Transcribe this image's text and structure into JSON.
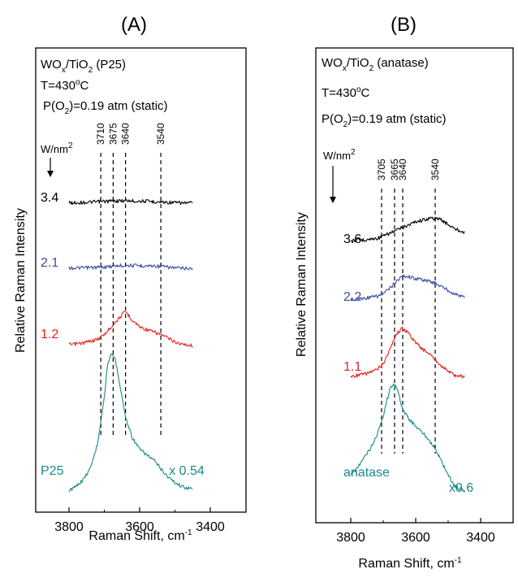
{
  "chart_data": [
    {
      "type": "line",
      "panel_label": "(A)",
      "annotation": {
        "catalyst": "WOx/TiO2 (P25)",
        "temperature": "T=430oC",
        "pressure": "P(O2)=0.19 atm (static)",
        "units_header": "W/nm2"
      },
      "xlabel": "Raman Shift, cm-1",
      "ylabel": "Relative Raman Intensity",
      "x_reversed": true,
      "xlim": [
        3900,
        3300
      ],
      "xticks": [
        3800,
        3600,
        3400
      ],
      "peak_markers": [
        3710,
        3675,
        3640,
        3540
      ],
      "series": [
        {
          "name": "3.4",
          "color": "#000000",
          "label_color": "#000000",
          "x": [
            3800,
            3760,
            3720,
            3700,
            3680,
            3660,
            3640,
            3620,
            3600,
            3580,
            3560,
            3540,
            3520,
            3500,
            3480,
            3450
          ],
          "y": [
            0.02,
            0.04,
            0.08,
            0.1,
            0.12,
            0.13,
            0.14,
            0.13,
            0.12,
            0.11,
            0.09,
            0.07,
            0.05,
            0.03,
            0.02,
            0.02
          ]
        },
        {
          "name": "2.1",
          "color": "#3b4fa3",
          "label_color": "#3b4fa3",
          "x": [
            3800,
            3760,
            3720,
            3700,
            3680,
            3660,
            3640,
            3620,
            3600,
            3580,
            3560,
            3540,
            3520,
            3500,
            3480,
            3450
          ],
          "y": [
            0.01,
            0.02,
            0.04,
            0.06,
            0.09,
            0.12,
            0.14,
            0.13,
            0.12,
            0.12,
            0.11,
            0.09,
            0.05,
            0.02,
            0.0,
            0.0
          ]
        },
        {
          "name": "1.2",
          "color": "#e8231d",
          "label_color": "#e8231d",
          "x": [
            3800,
            3760,
            3720,
            3700,
            3680,
            3660,
            3640,
            3620,
            3600,
            3580,
            3560,
            3540,
            3520,
            3500,
            3480,
            3450
          ],
          "y": [
            0.05,
            0.08,
            0.14,
            0.22,
            0.35,
            0.48,
            0.6,
            0.45,
            0.35,
            0.3,
            0.26,
            0.22,
            0.16,
            0.1,
            0.06,
            0.04
          ]
        },
        {
          "name": "P25",
          "color": "#1a8a8a",
          "label_color": "#1a8a8a",
          "scale_label": "x 0.54",
          "x": [
            3800,
            3780,
            3760,
            3740,
            3720,
            3700,
            3690,
            3680,
            3670,
            3660,
            3650,
            3640,
            3620,
            3600,
            3580,
            3560,
            3540,
            3520,
            3500,
            3480,
            3450
          ],
          "y": [
            0.02,
            0.05,
            0.1,
            0.18,
            0.35,
            0.7,
            0.95,
            1.0,
            0.98,
            0.85,
            0.7,
            0.55,
            0.4,
            0.32,
            0.28,
            0.24,
            0.18,
            0.12,
            0.08,
            0.05,
            0.03
          ]
        }
      ]
    },
    {
      "type": "line",
      "panel_label": "(B)",
      "annotation": {
        "catalyst": "WOx/TiO2 (anatase)",
        "temperature": "T=430oC",
        "pressure": "P(O2)=0.19 atm (static)",
        "units_header": "W/nm2"
      },
      "xlabel": "Raman Shift, cm-1",
      "ylabel": "Relative Raman Intensity",
      "x_reversed": true,
      "xlim": [
        3900,
        3300
      ],
      "xticks": [
        3800,
        3600,
        3400
      ],
      "peak_markers": [
        3705,
        3665,
        3640,
        3540
      ],
      "series": [
        {
          "name": "3.6",
          "color": "#000000",
          "label_color": "#000000",
          "x": [
            3800,
            3760,
            3720,
            3700,
            3680,
            3660,
            3640,
            3620,
            3600,
            3580,
            3560,
            3540,
            3520,
            3500,
            3480,
            3450
          ],
          "y": [
            0.0,
            0.01,
            0.03,
            0.06,
            0.1,
            0.14,
            0.18,
            0.22,
            0.26,
            0.28,
            0.3,
            0.31,
            0.28,
            0.22,
            0.16,
            0.12
          ]
        },
        {
          "name": "2.2",
          "color": "#3b4fa3",
          "label_color": "#3b4fa3",
          "x": [
            3800,
            3760,
            3720,
            3700,
            3680,
            3660,
            3640,
            3620,
            3600,
            3580,
            3560,
            3540,
            3520,
            3500,
            3480,
            3450
          ],
          "y": [
            0.0,
            0.01,
            0.03,
            0.06,
            0.12,
            0.2,
            0.26,
            0.25,
            0.23,
            0.22,
            0.2,
            0.18,
            0.14,
            0.1,
            0.06,
            0.02
          ]
        },
        {
          "name": "1.1",
          "color": "#e8231d",
          "label_color": "#e8231d",
          "x": [
            3800,
            3760,
            3720,
            3700,
            3680,
            3660,
            3640,
            3620,
            3600,
            3580,
            3560,
            3540,
            3520,
            3500,
            3480,
            3450
          ],
          "y": [
            0.0,
            0.02,
            0.06,
            0.12,
            0.25,
            0.4,
            0.46,
            0.4,
            0.32,
            0.26,
            0.22,
            0.16,
            0.1,
            0.05,
            0.01,
            0.0
          ]
        },
        {
          "name": "anatase",
          "color": "#1a8a8a",
          "label_color": "#1a8a8a",
          "scale_label": "x0.6",
          "x": [
            3800,
            3780,
            3760,
            3740,
            3720,
            3700,
            3690,
            3680,
            3670,
            3660,
            3650,
            3640,
            3620,
            3600,
            3580,
            3560,
            3540,
            3520,
            3500,
            3480,
            3450
          ],
          "y": [
            0.1,
            0.14,
            0.2,
            0.26,
            0.34,
            0.46,
            0.55,
            0.62,
            0.66,
            0.64,
            0.58,
            0.5,
            0.44,
            0.4,
            0.36,
            0.32,
            0.26,
            0.18,
            0.1,
            0.03,
            0.0
          ]
        }
      ]
    }
  ]
}
